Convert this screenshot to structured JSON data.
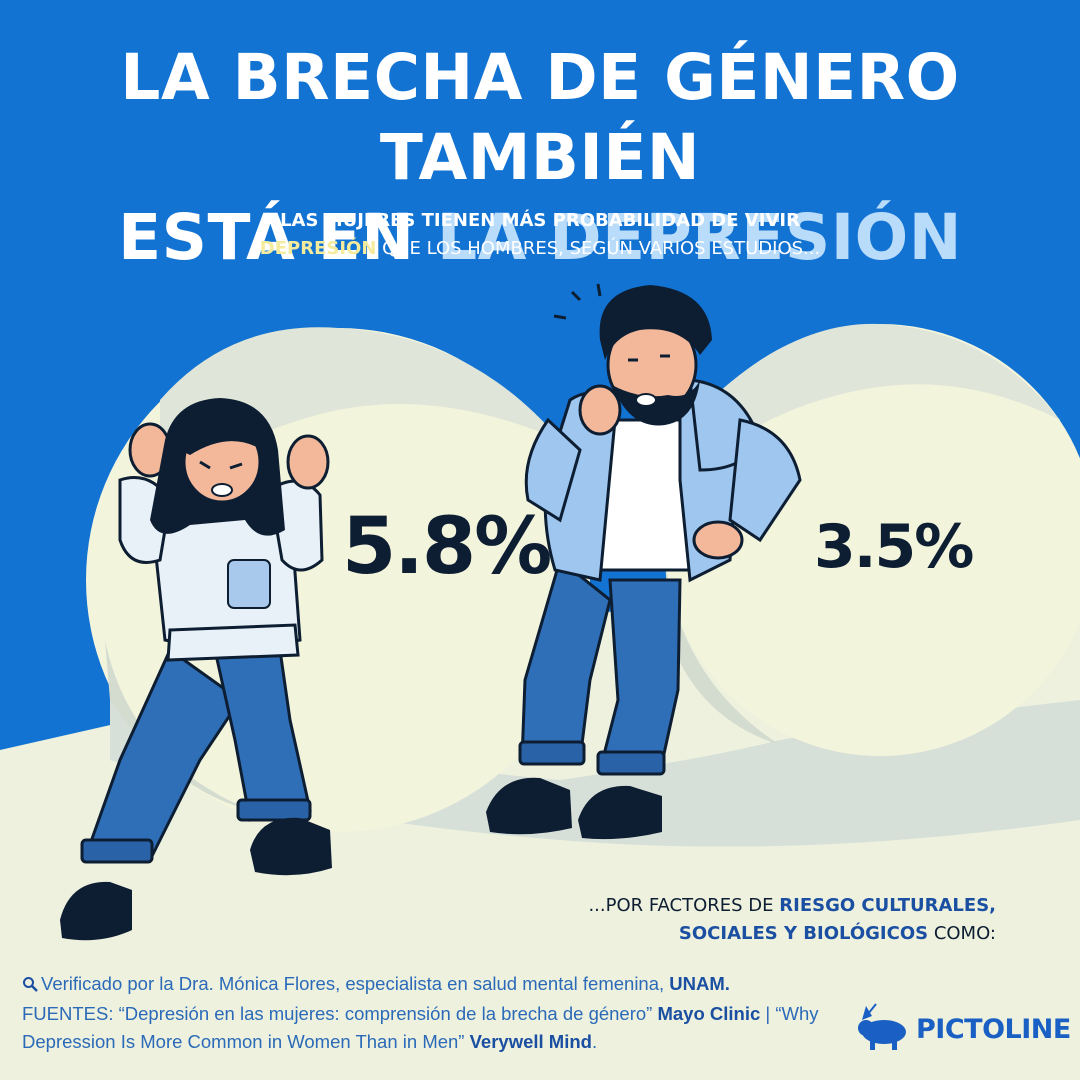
{
  "header": {
    "title_line1": "LA BRECHA DE GÉNERO TAMBIÉN",
    "title_line2_plain": "ESTÁ EN ",
    "title_line2_highlight": "LA DEPRESIÓN",
    "subtitle_line1": "LAS MUJERES TIENEN MÁS PROBABILIDAD DE VIVIR",
    "subtitle_highlight": "DEPRESIÓN",
    "subtitle_line2_rest": " QUE LOS HOMBRES, SEGÚN VARIOS ESTUDIOS..."
  },
  "stats": {
    "women_value": "5.8%",
    "men_value": "3.5%"
  },
  "factors": {
    "prefix": "...POR FACTORES DE ",
    "highlight1": "RIESGO CULTURALES,",
    "highlight2": "SOCIALES Y BIOLÓGICOS",
    "suffix": " COMO:"
  },
  "footer": {
    "verified_text": "Verificado por la Dra. Mónica Flores, especialista en salud mental femenina, ",
    "verified_institution": "UNAM.",
    "sources_text1": "FUENTES: “Depresión en las mujeres: comprensión de la brecha de género” ",
    "source1_org": "Mayo Clinic",
    "sources_sep": " | “Why Depression Is More Common in Women Than in Men” ",
    "source2_org": "Verywell Mind",
    "sources_end": "."
  },
  "brand": {
    "name": "PICTOLINE"
  },
  "colors": {
    "background": "#1273d3",
    "title_highlight": "#b9dcfb",
    "subtitle_highlight": "#f4ec9c",
    "ground": "#eef1de",
    "ball": "#f3f4dc",
    "text_dark": "#0d1e33",
    "brand": "#1a5fc4"
  }
}
